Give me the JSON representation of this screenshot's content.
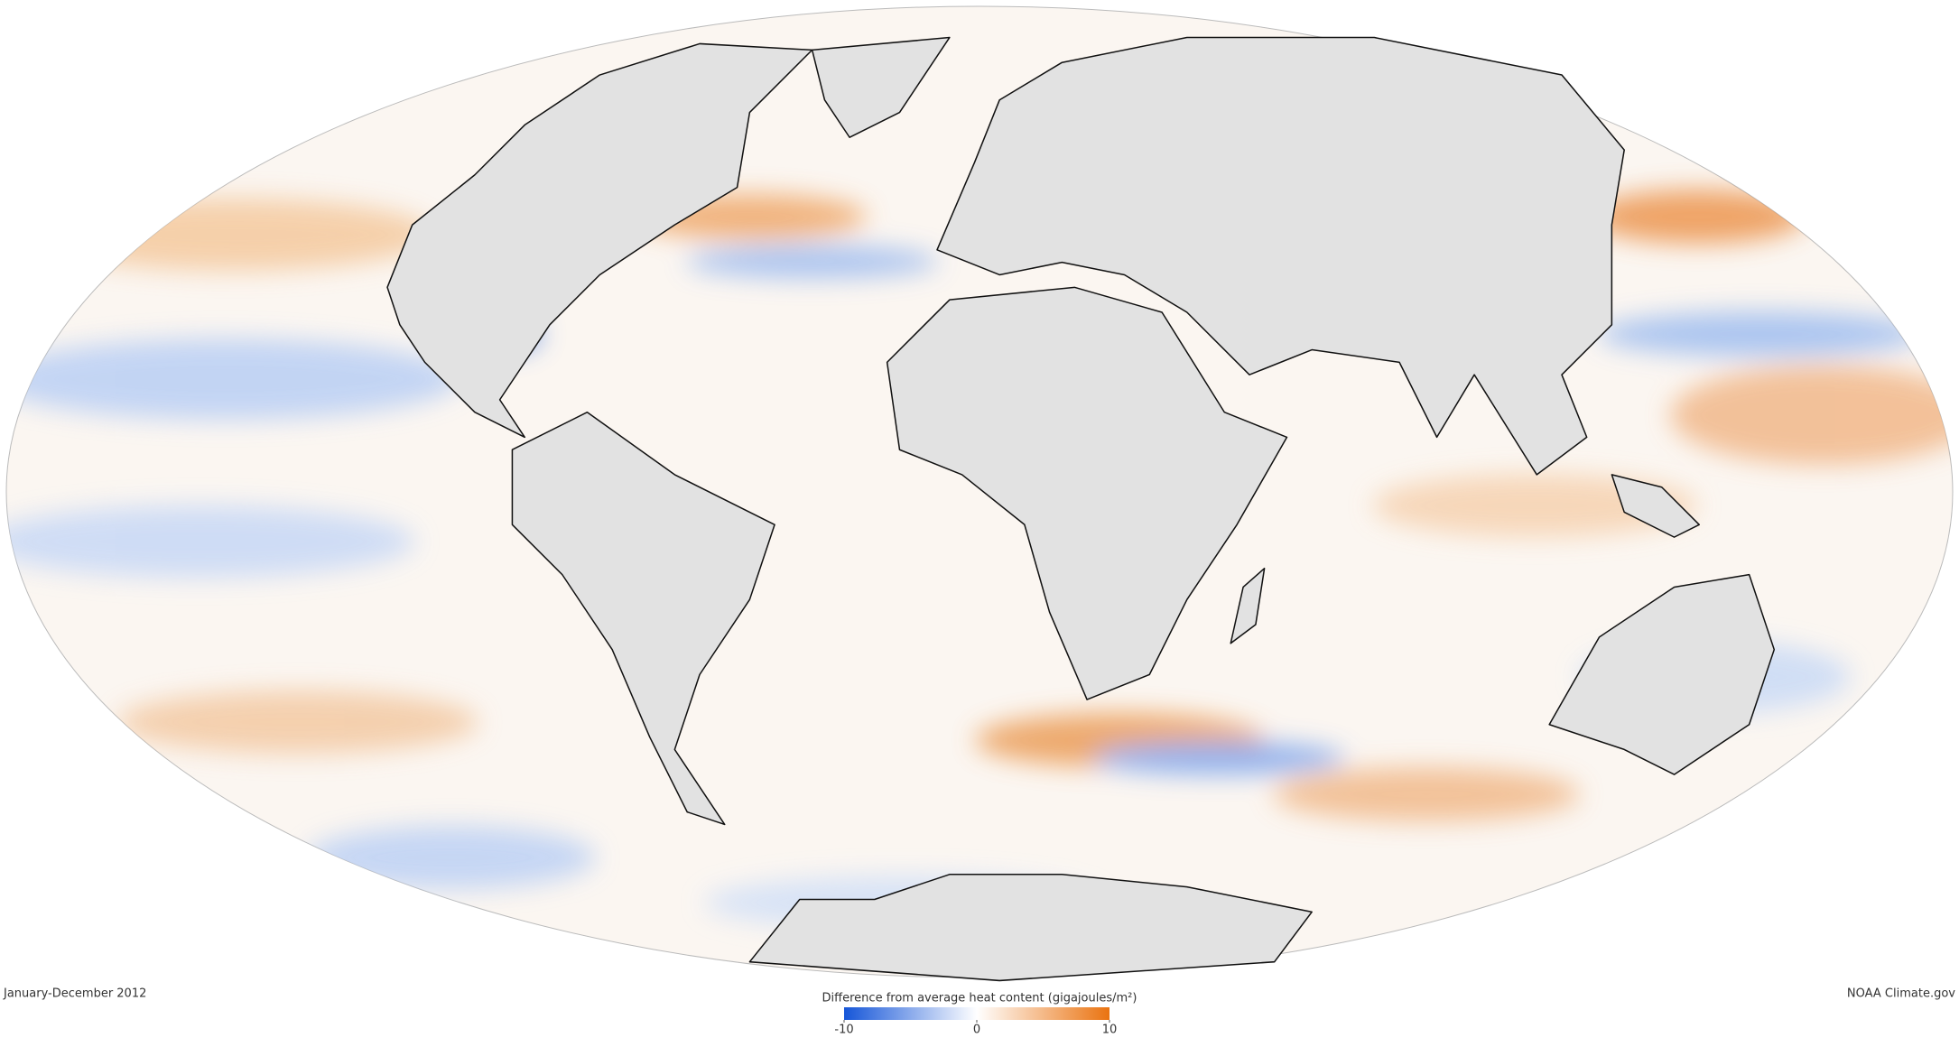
{
  "caption": "January-December 2012",
  "credit": "NOAA Climate.gov",
  "legend": {
    "title": "Difference from average heat content (gigajoules/m²)",
    "range": [
      -10,
      10
    ],
    "ticks": [
      -10,
      0,
      10
    ],
    "colors": [
      "#1656d8",
      "#ffffff",
      "#ea7310"
    ]
  }
}
